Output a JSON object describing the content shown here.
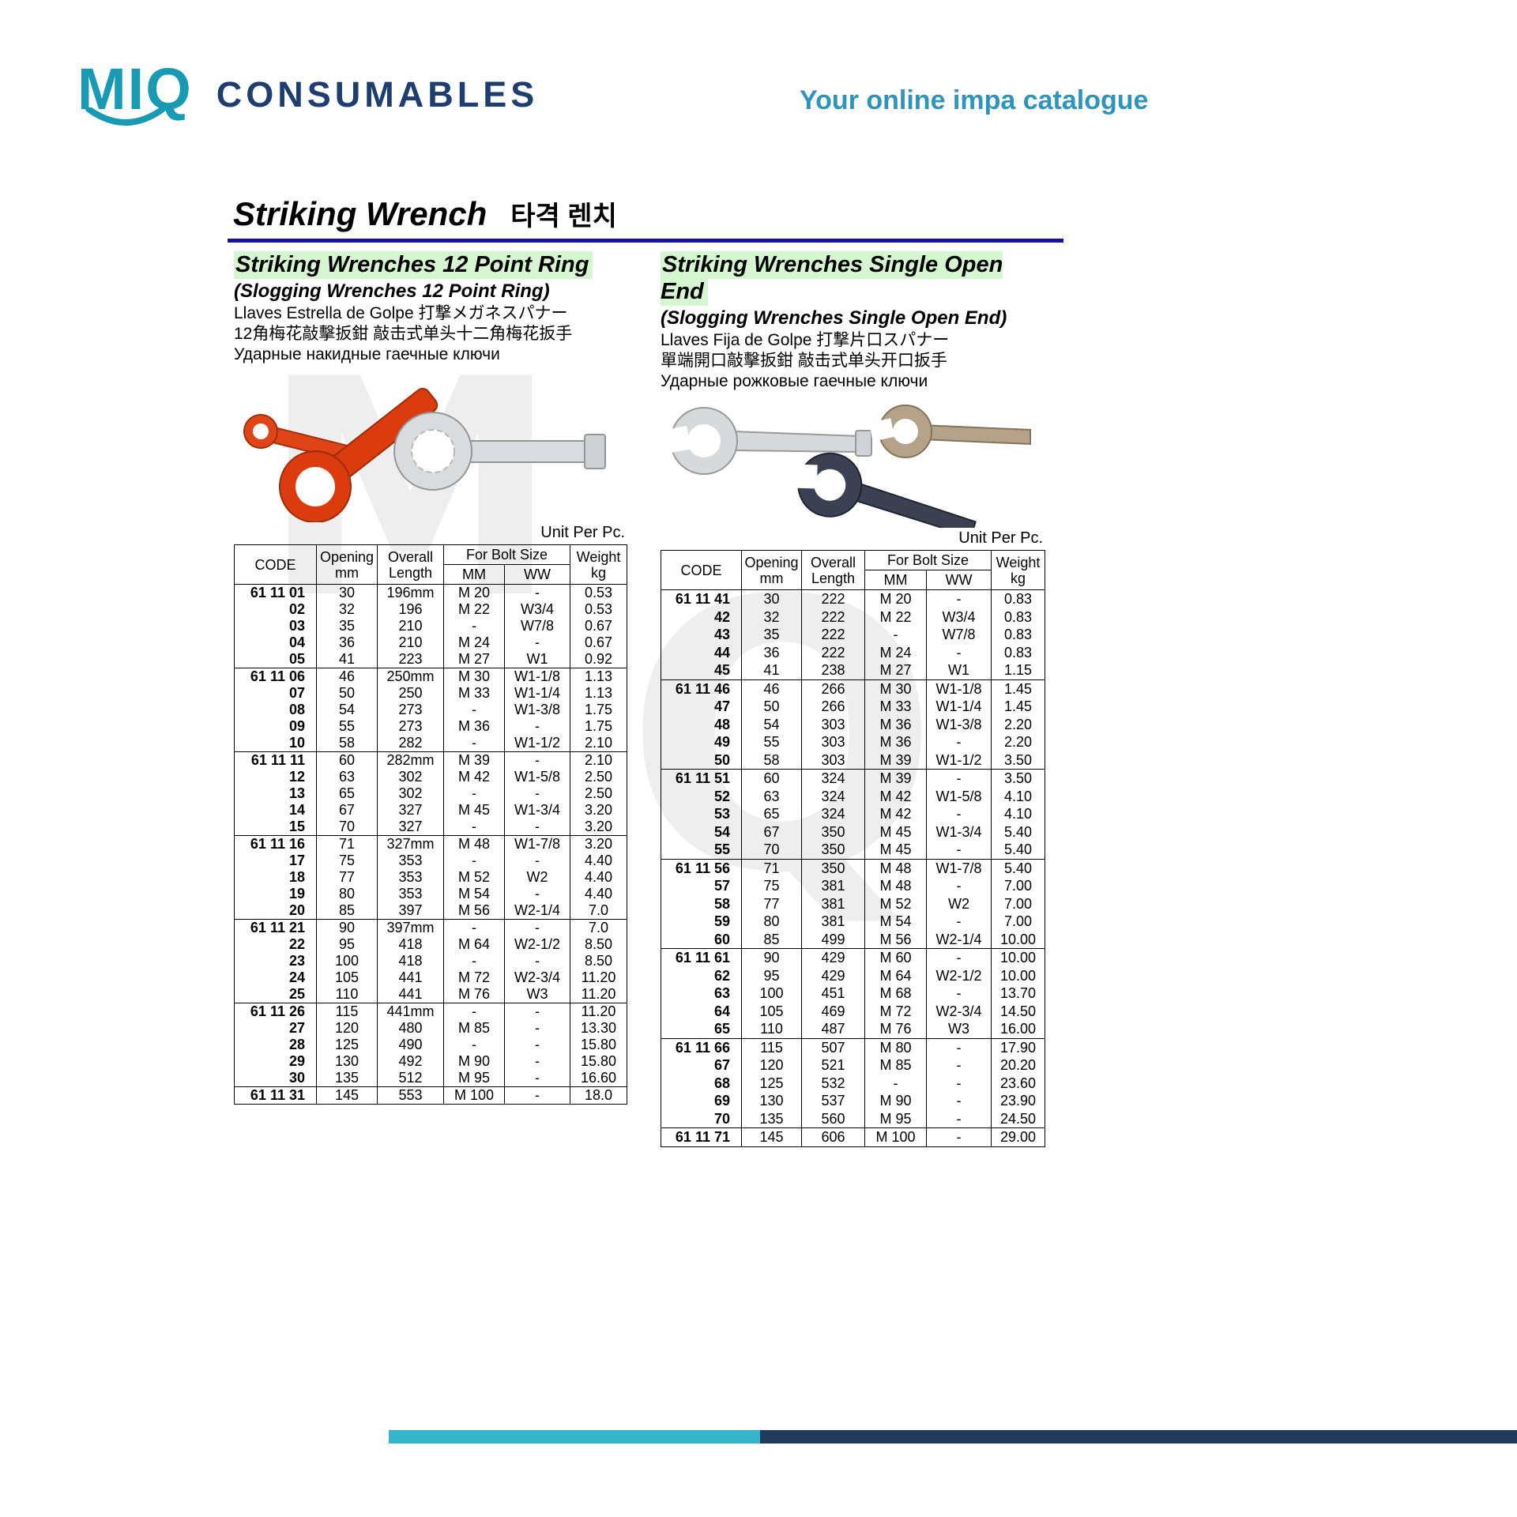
{
  "header": {
    "logo_text": "MIQ",
    "brand": "CONSUMABLES",
    "tagline": "Your online impa catalogue"
  },
  "page_title": {
    "en": "Striking Wrench",
    "kr": "타격 렌치"
  },
  "watermark": {
    "letters": [
      "M",
      "Q"
    ]
  },
  "left_section": {
    "title": "Striking Wrenches 12 Point Ring",
    "subtitle": "(Slogging Wrenches 12 Point Ring)",
    "desc_lines": [
      "Llaves Estrella de Golpe  打撃メガネスパナー",
      "12角梅花敲擊扳鉗  敲击式单头十二角梅花扳手",
      "Ударные накидные гаечные ключи"
    ],
    "unit_label": "Unit Per Pc.",
    "table": {
      "headers": {
        "code": "CODE",
        "opening": [
          "Opening",
          "mm"
        ],
        "length": [
          "Overall",
          "Length"
        ],
        "bolt": "For Bolt Size",
        "mm": "MM",
        "ww": "WW",
        "weight": [
          "Weight",
          "kg"
        ]
      },
      "groups": [
        [
          [
            "61 11 01",
            "30",
            "196mm",
            "M 20",
            "-",
            "0.53"
          ],
          [
            "02",
            "32",
            "196",
            "M 22",
            "W3/4",
            "0.53"
          ],
          [
            "03",
            "35",
            "210",
            "-",
            "W7/8",
            "0.67"
          ],
          [
            "04",
            "36",
            "210",
            "M 24",
            "-",
            "0.67"
          ],
          [
            "05",
            "41",
            "223",
            "M 27",
            "W1",
            "0.92"
          ]
        ],
        [
          [
            "61 11 06",
            "46",
            "250mm",
            "M 30",
            "W1-1/8",
            "1.13"
          ],
          [
            "07",
            "50",
            "250",
            "M 33",
            "W1-1/4",
            "1.13"
          ],
          [
            "08",
            "54",
            "273",
            "-",
            "W1-3/8",
            "1.75"
          ],
          [
            "09",
            "55",
            "273",
            "M 36",
            "-",
            "1.75"
          ],
          [
            "10",
            "58",
            "282",
            "-",
            "W1-1/2",
            "2.10"
          ]
        ],
        [
          [
            "61 11 11",
            "60",
            "282mm",
            "M 39",
            "-",
            "2.10"
          ],
          [
            "12",
            "63",
            "302",
            "M 42",
            "W1-5/8",
            "2.50"
          ],
          [
            "13",
            "65",
            "302",
            "-",
            "-",
            "2.50"
          ],
          [
            "14",
            "67",
            "327",
            "M 45",
            "W1-3/4",
            "3.20"
          ],
          [
            "15",
            "70",
            "327",
            "-",
            "-",
            "3.20"
          ]
        ],
        [
          [
            "61 11 16",
            "71",
            "327mm",
            "M 48",
            "W1-7/8",
            "3.20"
          ],
          [
            "17",
            "75",
            "353",
            "-",
            "-",
            "4.40"
          ],
          [
            "18",
            "77",
            "353",
            "M 52",
            "W2",
            "4.40"
          ],
          [
            "19",
            "80",
            "353",
            "M 54",
            "-",
            "4.40"
          ],
          [
            "20",
            "85",
            "397",
            "M 56",
            "W2-1/4",
            "7.0"
          ]
        ],
        [
          [
            "61 11 21",
            "90",
            "397mm",
            "-",
            "-",
            "7.0"
          ],
          [
            "22",
            "95",
            "418",
            "M 64",
            "W2-1/2",
            "8.50"
          ],
          [
            "23",
            "100",
            "418",
            "-",
            "-",
            "8.50"
          ],
          [
            "24",
            "105",
            "441",
            "M 72",
            "W2-3/4",
            "11.20"
          ],
          [
            "25",
            "110",
            "441",
            "M 76",
            "W3",
            "11.20"
          ]
        ],
        [
          [
            "61 11 26",
            "115",
            "441mm",
            "-",
            "-",
            "11.20"
          ],
          [
            "27",
            "120",
            "480",
            "M 85",
            "-",
            "13.30"
          ],
          [
            "28",
            "125",
            "490",
            "-",
            "-",
            "15.80"
          ],
          [
            "29",
            "130",
            "492",
            "M 90",
            "-",
            "15.80"
          ],
          [
            "30",
            "135",
            "512",
            "M 95",
            "-",
            "16.60"
          ]
        ],
        [
          [
            "61 11 31",
            "145",
            "553",
            "M 100",
            "-",
            "18.0"
          ]
        ]
      ]
    }
  },
  "right_section": {
    "title": "Striking Wrenches Single Open End",
    "subtitle": "(Slogging Wrenches Single Open End)",
    "desc_lines": [
      "Llaves Fija de Golpe  打撃片口スパナー",
      "單端開口敲擊扳鉗  敲击式单头开口扳手",
      "Ударные рожковые гаечные ключи"
    ],
    "unit_label": "Unit Per Pc.",
    "table": {
      "headers": {
        "code": "CODE",
        "opening": [
          "Opening",
          "mm"
        ],
        "length": [
          "Overall",
          "Length"
        ],
        "bolt": "For Bolt Size",
        "mm": "MM",
        "ww": "WW",
        "weight": [
          "Weight",
          "kg"
        ]
      },
      "groups": [
        [
          [
            "61 11 41",
            "30",
            "222",
            "M 20",
            "-",
            "0.83"
          ],
          [
            "42",
            "32",
            "222",
            "M 22",
            "W3/4",
            "0.83"
          ],
          [
            "43",
            "35",
            "222",
            "-",
            "W7/8",
            "0.83"
          ],
          [
            "44",
            "36",
            "222",
            "M 24",
            "-",
            "0.83"
          ],
          [
            "45",
            "41",
            "238",
            "M 27",
            "W1",
            "1.15"
          ]
        ],
        [
          [
            "61 11 46",
            "46",
            "266",
            "M 30",
            "W1-1/8",
            "1.45"
          ],
          [
            "47",
            "50",
            "266",
            "M 33",
            "W1-1/4",
            "1.45"
          ],
          [
            "48",
            "54",
            "303",
            "M 36",
            "W1-3/8",
            "2.20"
          ],
          [
            "49",
            "55",
            "303",
            "M 36",
            "-",
            "2.20"
          ],
          [
            "50",
            "58",
            "303",
            "M 39",
            "W1-1/2",
            "3.50"
          ]
        ],
        [
          [
            "61 11 51",
            "60",
            "324",
            "M 39",
            "-",
            "3.50"
          ],
          [
            "52",
            "63",
            "324",
            "M 42",
            "W1-5/8",
            "4.10"
          ],
          [
            "53",
            "65",
            "324",
            "M 42",
            "-",
            "4.10"
          ],
          [
            "54",
            "67",
            "350",
            "M 45",
            "W1-3/4",
            "5.40"
          ],
          [
            "55",
            "70",
            "350",
            "M 45",
            "-",
            "5.40"
          ]
        ],
        [
          [
            "61 11 56",
            "71",
            "350",
            "M 48",
            "W1-7/8",
            "5.40"
          ],
          [
            "57",
            "75",
            "381",
            "M 48",
            "-",
            "7.00"
          ],
          [
            "58",
            "77",
            "381",
            "M 52",
            "W2",
            "7.00"
          ],
          [
            "59",
            "80",
            "381",
            "M 54",
            "-",
            "7.00"
          ],
          [
            "60",
            "85",
            "499",
            "M 56",
            "W2-1/4",
            "10.00"
          ]
        ],
        [
          [
            "61 11 61",
            "90",
            "429",
            "M 60",
            "-",
            "10.00"
          ],
          [
            "62",
            "95",
            "429",
            "M 64",
            "W2-1/2",
            "10.00"
          ],
          [
            "63",
            "100",
            "451",
            "M 68",
            "-",
            "13.70"
          ],
          [
            "64",
            "105",
            "469",
            "M 72",
            "W2-3/4",
            "14.50"
          ],
          [
            "65",
            "110",
            "487",
            "M 76",
            "W3",
            "16.00"
          ]
        ],
        [
          [
            "61 11 66",
            "115",
            "507",
            "M 80",
            "-",
            "17.90"
          ],
          [
            "67",
            "120",
            "521",
            "M 85",
            "-",
            "20.20"
          ],
          [
            "68",
            "125",
            "532",
            "-",
            "-",
            "23.60"
          ],
          [
            "69",
            "130",
            "537",
            "M 90",
            "-",
            "23.90"
          ],
          [
            "70",
            "135",
            "560",
            "M 95",
            "-",
            "24.50"
          ]
        ],
        [
          [
            "61 11 71",
            "145",
            "606",
            "M 100",
            "-",
            "29.00"
          ]
        ]
      ]
    }
  }
}
